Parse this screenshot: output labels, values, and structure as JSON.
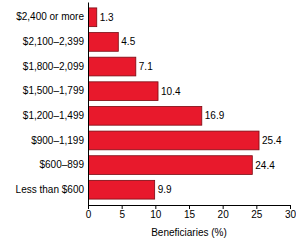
{
  "chart_data": {
    "type": "bar",
    "orientation": "horizontal",
    "categories": [
      "$2,400 or more",
      "$2,100–2,399",
      "$1,800–2,099",
      "$1,500–1,799",
      "$1,200–1,499",
      "$900–1,199",
      "$600–899",
      "Less than $600"
    ],
    "values": [
      1.3,
      4.5,
      7.1,
      10.4,
      16.9,
      25.4,
      24.4,
      9.9
    ],
    "color": "#e8192c",
    "x_label": "Beneficiaries (%)",
    "xlim": [
      0,
      30
    ],
    "xticks": [
      0,
      5,
      10,
      15,
      20,
      25,
      30
    ],
    "grid": false,
    "data_labels": true
  }
}
